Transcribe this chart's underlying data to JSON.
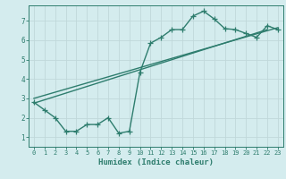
{
  "xlabel": "Humidex (Indice chaleur)",
  "bg_color": "#d4ecee",
  "grid_color": "#c0d8da",
  "line_color": "#2e7d6e",
  "xlim": [
    -0.5,
    23.5
  ],
  "ylim": [
    0.5,
    7.8
  ],
  "xticks": [
    0,
    1,
    2,
    3,
    4,
    5,
    6,
    7,
    8,
    9,
    10,
    11,
    12,
    13,
    14,
    15,
    16,
    17,
    18,
    19,
    20,
    21,
    22,
    23
  ],
  "yticks": [
    1,
    2,
    3,
    4,
    5,
    6,
    7
  ],
  "line1_x": [
    0,
    1,
    2,
    3,
    4,
    5,
    6,
    7,
    8,
    9,
    10,
    11,
    12,
    13,
    14,
    15,
    16,
    17,
    18,
    19,
    20,
    21,
    22,
    23
  ],
  "line1_y": [
    2.8,
    2.4,
    2.0,
    1.3,
    1.3,
    1.65,
    1.65,
    2.0,
    1.2,
    1.3,
    4.35,
    5.85,
    6.15,
    6.55,
    6.55,
    7.25,
    7.5,
    7.1,
    6.6,
    6.55,
    6.35,
    6.15,
    6.75,
    6.55
  ],
  "line2_x": [
    0,
    22
  ],
  "line2_y": [
    2.75,
    6.55
  ],
  "line3_x": [
    0,
    23
  ],
  "line3_y": [
    3.0,
    6.65
  ],
  "marker": "+",
  "markersize": 4,
  "linewidth": 1.0
}
